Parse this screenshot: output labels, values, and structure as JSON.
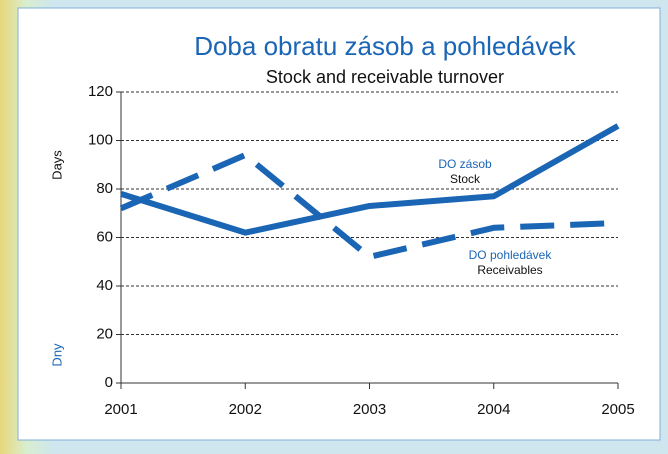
{
  "chart_data": {
    "type": "line",
    "title": "Doba obratu zásob a pohledávek",
    "subtitle": "Stock and receivable turnover",
    "ylabel": "Days",
    "ylabel_local": "Dny",
    "x": [
      2001,
      2002,
      2003,
      2004,
      2005
    ],
    "xlim": [
      2001,
      2005
    ],
    "xticks": [
      2001,
      2002,
      2003,
      2004,
      2005
    ],
    "ylim": [
      0,
      120
    ],
    "yticks": [
      0,
      20,
      40,
      60,
      80,
      100,
      120
    ],
    "grid": true,
    "series": [
      {
        "name": "DO zásob",
        "name_en": "Stock",
        "color": "#1b65b5",
        "style": "solid",
        "values": [
          78,
          62,
          73,
          77,
          106
        ]
      },
      {
        "name": "DO pohledávek",
        "name_en": "Receivables",
        "color": "#1b65b5",
        "style": "dashed",
        "values": [
          72,
          94,
          52,
          64,
          66
        ]
      }
    ]
  }
}
